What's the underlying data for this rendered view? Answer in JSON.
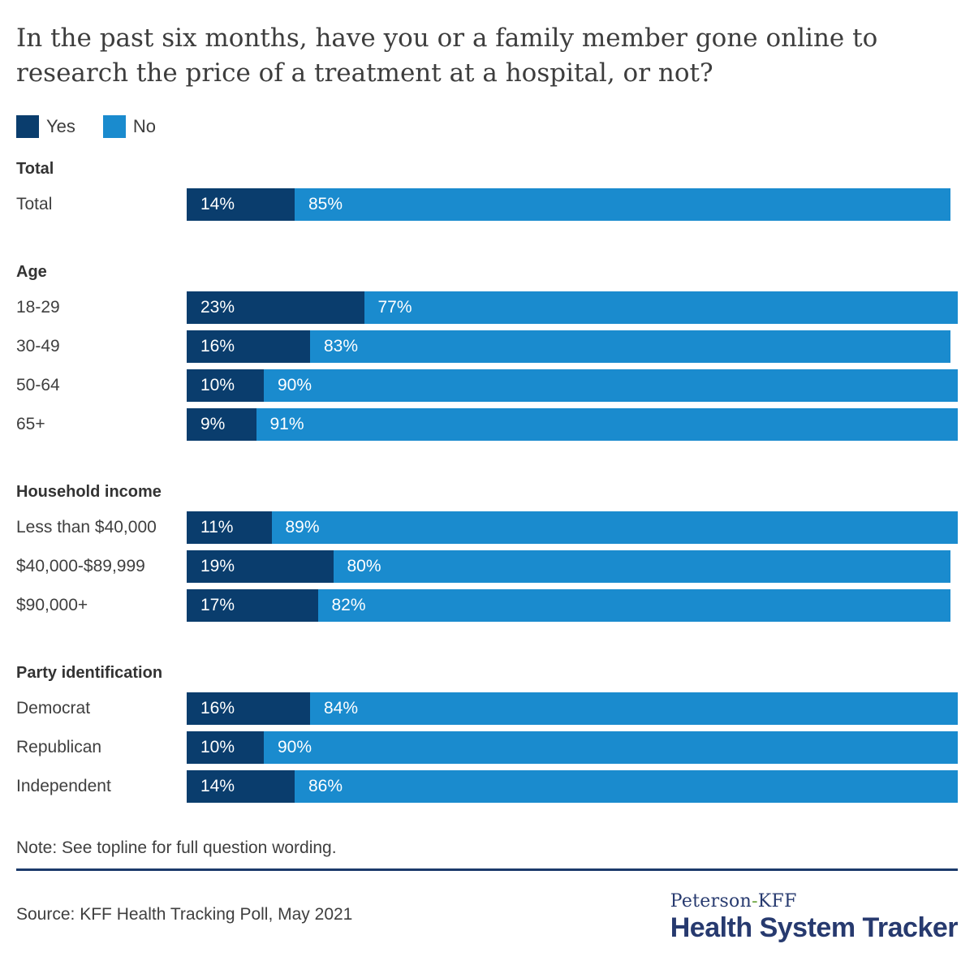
{
  "colors": {
    "yes": "#0A3D6D",
    "no": "#1A8BCE",
    "divider": "#1B3A6B",
    "navy": "#273A6F",
    "green": "#69A33C",
    "title_ink": "#3D3D3D",
    "ink": "#3F3F3F",
    "heading_ink": "#333333"
  },
  "header": {
    "title_line1": "In the past six months, have you or a family member gone online to",
    "title_line2": "research the price of a treatment at a hospital, or not?"
  },
  "legend": {
    "yes_label": "Yes",
    "no_label": "No"
  },
  "chart_data": {
    "type": "bar",
    "orientation": "horizontal",
    "stacked": true,
    "unit": "%",
    "title": "In the past six months, have you or a family member gone online to research the price of a treatment at a hospital, or not?",
    "series_names": [
      "Yes",
      "No"
    ],
    "xlim": [
      0,
      100
    ],
    "legend_position": "top-left",
    "grid": false,
    "groups": [
      {
        "heading": "Total",
        "rows": [
          {
            "label": "Total",
            "yes": 14,
            "no": 85
          }
        ]
      },
      {
        "heading": "Age",
        "rows": [
          {
            "label": "18-29",
            "yes": 23,
            "no": 77
          },
          {
            "label": "30-49",
            "yes": 16,
            "no": 83
          },
          {
            "label": "50-64",
            "yes": 10,
            "no": 90
          },
          {
            "label": "65+",
            "yes": 9,
            "no": 91
          }
        ]
      },
      {
        "heading": "Household income",
        "rows": [
          {
            "label": "Less than $40,000",
            "yes": 11,
            "no": 89
          },
          {
            "label": "$40,000-$89,999",
            "yes": 19,
            "no": 80
          },
          {
            "label": "$90,000+",
            "yes": 17,
            "no": 82
          }
        ]
      },
      {
        "heading": "Party identification",
        "rows": [
          {
            "label": "Democrat",
            "yes": 16,
            "no": 84
          },
          {
            "label": "Republican",
            "yes": 10,
            "no": 90
          },
          {
            "label": "Independent",
            "yes": 14,
            "no": 86
          }
        ]
      }
    ]
  },
  "footer": {
    "note": "Note: See topline for full question wording.",
    "source": "Source: KFF Health Tracking Poll, May 2021",
    "logo_top_left": "Peterson",
    "logo_top_hyphen": "-",
    "logo_top_right": "KFF",
    "logo_bottom": "Health System Tracker"
  }
}
